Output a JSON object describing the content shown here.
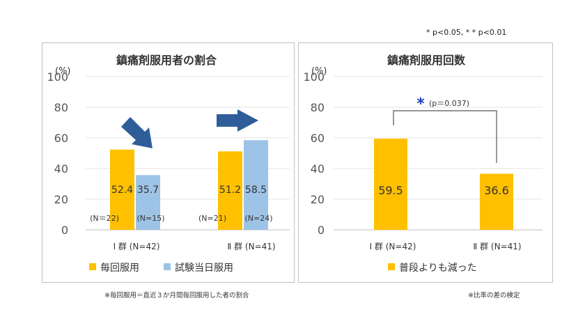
{
  "significance_note": "* p<0.05,   * * p<0.01",
  "footnotes": {
    "left": "※毎回服用＝直近３か月間毎回服用した者の割合",
    "right": "※比率の差の検定"
  },
  "colors": {
    "orange": "#FFC000",
    "light_blue": "#9DC3E6",
    "arrow_blue": "#2E5D9A",
    "star_blue": "#1F3FBF"
  },
  "chart_data": [
    {
      "type": "bar",
      "title": "鎮痛剤服用者の割合",
      "ylabel": "(%)",
      "ylim": [
        0,
        100
      ],
      "yticks": [
        "0",
        "20",
        "40",
        "60",
        "80",
        "100"
      ],
      "categories": [
        "Ⅰ 群 (N=42)",
        "Ⅱ 群 (N=41)"
      ],
      "series": [
        {
          "name": "毎回服用",
          "color": "#FFC000",
          "values": [
            52.4,
            51.2
          ],
          "value_labels": [
            "52.4",
            "51.2"
          ],
          "n_labels": [
            "(N＝22)",
            "(N=21)"
          ]
        },
        {
          "name": "試験当日服用",
          "color": "#9DC3E6",
          "values": [
            35.7,
            58.5
          ],
          "value_labels": [
            "35.7",
            "58.5"
          ],
          "n_labels": [
            "(N=15)",
            "(N=24)"
          ]
        }
      ],
      "annotations": [
        "arrow-down-right",
        "arrow-right"
      ],
      "legend": "bottom",
      "grid": true
    },
    {
      "type": "bar",
      "title": "鎮痛剤服用回数",
      "ylabel": "(%)",
      "ylim": [
        0,
        100
      ],
      "yticks": [
        "0",
        "20",
        "40",
        "60",
        "80",
        "100"
      ],
      "categories": [
        "Ⅰ 群 (N=42)",
        "Ⅱ 群 (N=41)"
      ],
      "series": [
        {
          "name": "普段よりも減った",
          "color": "#FFC000",
          "values": [
            59.5,
            36.6
          ],
          "value_labels": [
            "59.5",
            "36.6"
          ]
        }
      ],
      "significance": {
        "star": "*",
        "text": "(p＝0.037)"
      },
      "legend": "bottom",
      "grid": true
    }
  ]
}
